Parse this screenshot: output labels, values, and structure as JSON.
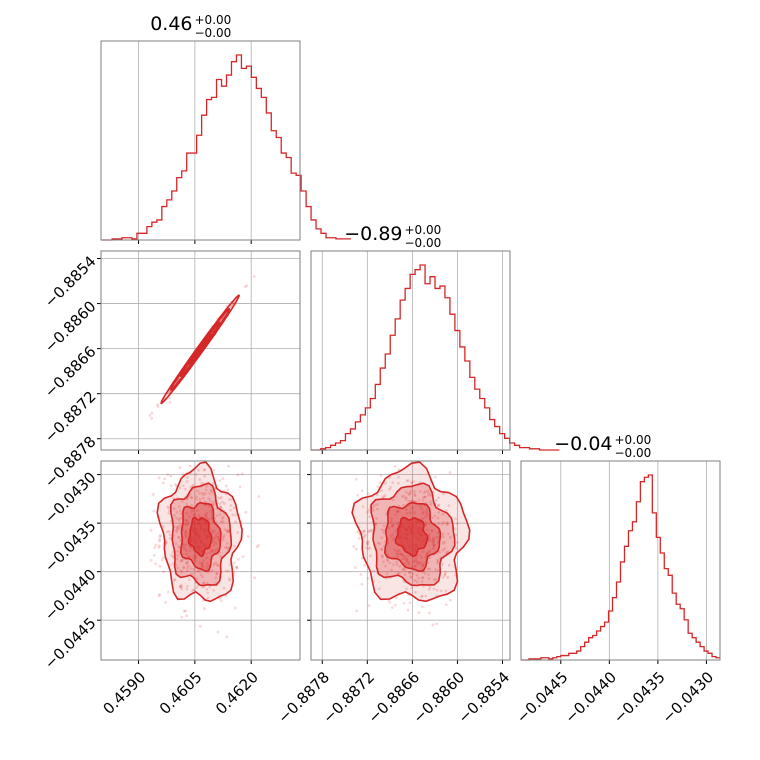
{
  "chart_data": {
    "type": "corner",
    "accent_color": "#d62728",
    "grid": true,
    "parameters": [
      {
        "index": 0,
        "title": {
          "value": "0.46",
          "upper": "+0.00",
          "lower": "−0.00"
        },
        "range": [
          0.458,
          0.4633
        ],
        "ticks": [
          0.459,
          0.4605,
          0.462
        ],
        "tick_labels": [
          "0.4590",
          "0.4605",
          "0.4620"
        ]
      },
      {
        "index": 1,
        "title": {
          "value": "−0.89",
          "upper": "+0.00",
          "lower": "−0.00"
        },
        "range": [
          -0.88795,
          -0.8853
        ],
        "ticks": [
          -0.8878,
          -0.8872,
          -0.8866,
          -0.886,
          -0.8854
        ],
        "tick_labels": [
          "−0.8878",
          "−0.8872",
          "−0.8866",
          "−0.8860",
          "−0.8854"
        ]
      },
      {
        "index": 2,
        "title": {
          "value": "−0.04",
          "upper": "+0.00",
          "lower": "−0.00"
        },
        "range": [
          -0.04491,
          -0.04286
        ],
        "ticks": [
          -0.0445,
          -0.044,
          -0.0435,
          -0.043
        ],
        "tick_labels": [
          "−0.0445",
          "−0.0440",
          "−0.0435",
          "−0.0430"
        ]
      }
    ],
    "histograms": [
      {
        "param": 0,
        "x_start": 0.45803,
        "bin_width": 0.0001325,
        "counts": [
          0,
          0,
          0.5,
          0.5,
          1,
          1,
          0.5,
          3,
          3,
          6,
          8,
          9,
          15,
          18,
          22,
          28,
          31,
          39,
          39,
          47,
          56,
          63,
          64,
          72,
          69,
          74,
          80,
          83,
          77,
          78,
          73,
          68,
          64,
          57,
          49,
          46,
          39,
          37,
          30,
          29,
          22,
          15,
          9,
          5,
          3,
          1,
          1,
          0.5,
          0.5,
          0.5
        ]
      },
      {
        "param": 1,
        "x_start": -0.887955,
        "bin_width": 6.625e-05,
        "counts": [
          0,
          0,
          0.5,
          1,
          2,
          3,
          4,
          7,
          9,
          12,
          15,
          18,
          22,
          28,
          35,
          41,
          49,
          56,
          64,
          69,
          75,
          77,
          79,
          71,
          74,
          69,
          70,
          65,
          58,
          51,
          44,
          38,
          31,
          26,
          22,
          18,
          13,
          10,
          7,
          5,
          3,
          2,
          1,
          1,
          0.5,
          0.5,
          0,
          0,
          0,
          0
        ]
      },
      {
        "param": 2,
        "x_start": -0.04491,
        "bin_width": 4.1e-05,
        "counts": [
          0,
          0,
          0.5,
          0.5,
          0.5,
          1,
          1,
          0.5,
          1,
          1.5,
          2,
          2,
          3,
          3,
          4,
          6,
          8,
          10,
          11,
          13,
          15,
          17,
          22,
          28,
          35,
          44,
          51,
          58,
          62,
          71,
          80,
          82,
          83,
          66,
          55,
          48,
          41,
          38,
          30,
          25,
          23,
          18,
          12,
          10,
          8,
          6,
          4,
          3,
          1.5,
          1
        ]
      }
    ],
    "pairs": [
      {
        "x_param": 0,
        "y_param": 1,
        "correlation": 0.995,
        "center": [
          0.46064,
          -0.88661
        ],
        "spread": [
          0.00052,
          0.00036
        ],
        "scatter_extent": [
          0.45868,
          0.46282,
          -0.88767,
          -0.88547
        ]
      },
      {
        "x_param": 0,
        "y_param": 2,
        "correlation": -0.05,
        "center": [
          0.46064,
          -0.04363
        ],
        "spread": [
          0.00052,
          0.00034
        ],
        "scatter_extent": [
          0.45885,
          0.46272,
          -0.04486,
          -0.04291
        ]
      },
      {
        "x_param": 1,
        "y_param": 2,
        "correlation": -0.05,
        "center": [
          -0.88661,
          -0.04363
        ],
        "spread": [
          0.00036,
          0.00034
        ],
        "scatter_extent": [
          -0.8874,
          -0.886,
          -0.04486,
          -0.04291
        ]
      }
    ]
  }
}
